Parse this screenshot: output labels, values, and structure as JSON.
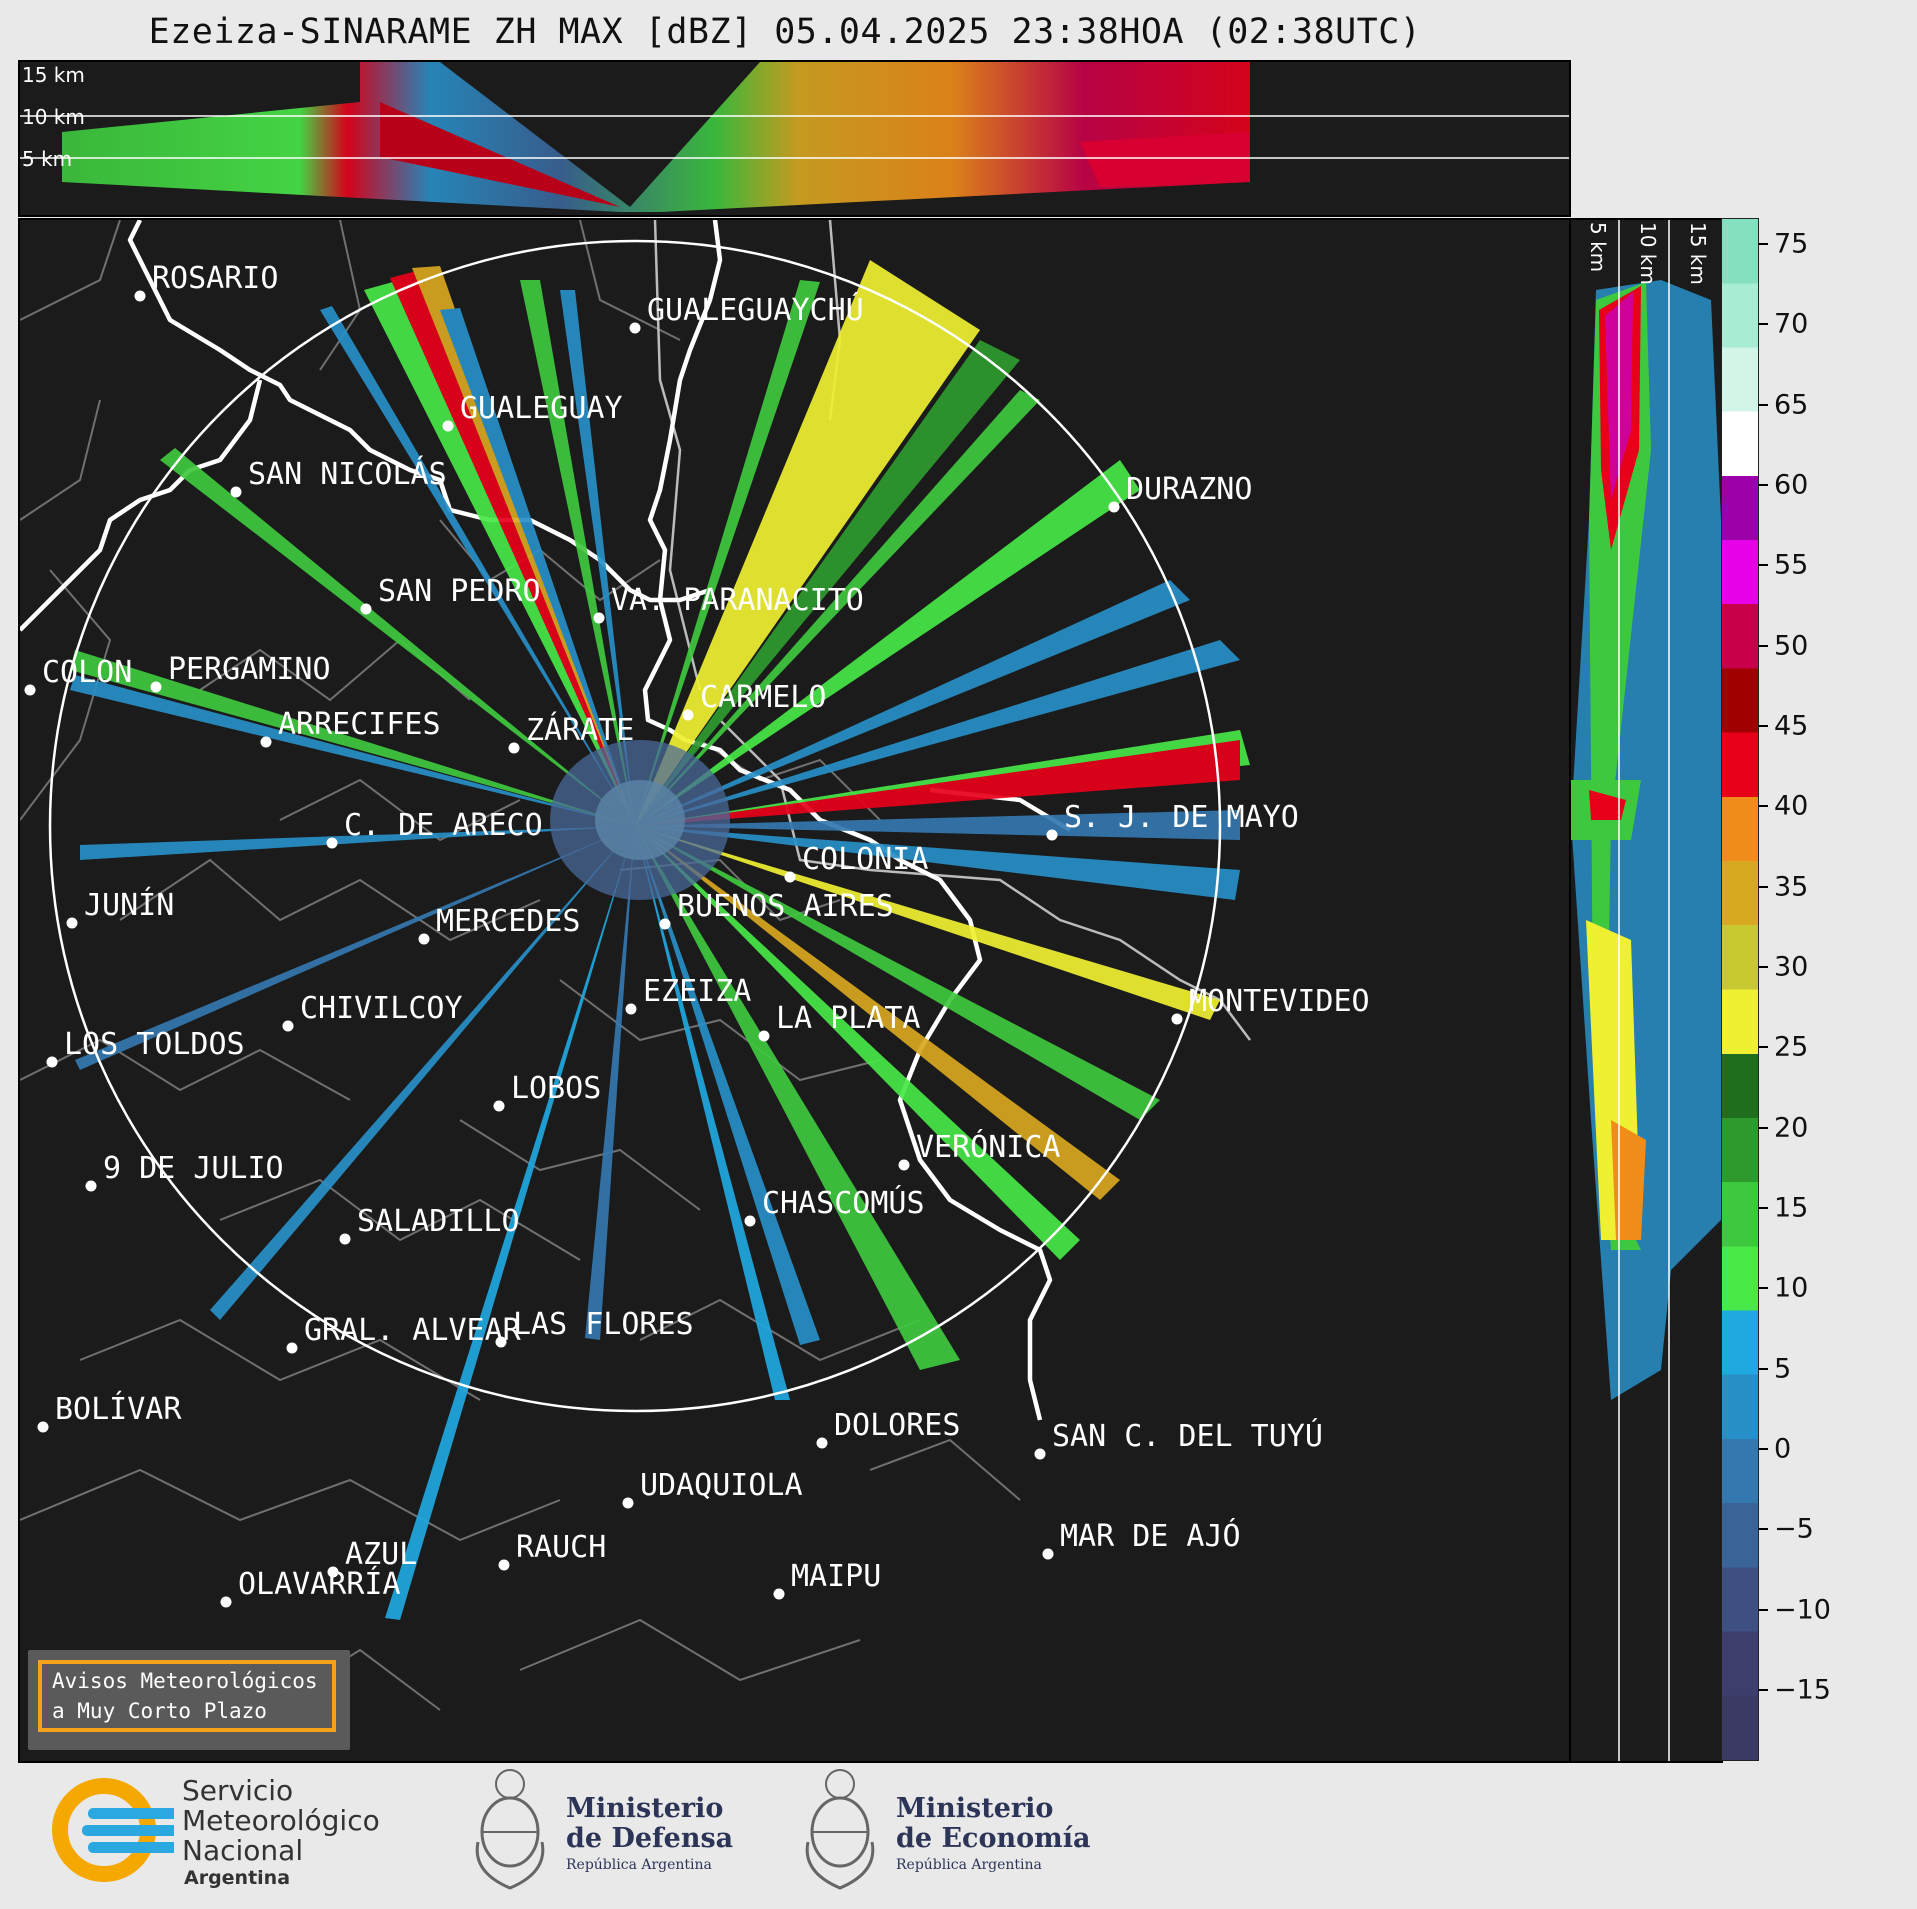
{
  "title": "Ezeiza-SINARAME ZH MAX [dBZ] 05.04.2025 23:38HOA (02:38UTC)",
  "height_labels": [
    "15 km",
    "10 km",
    "5 km"
  ],
  "colorbar": {
    "ticks": [
      "75",
      "70",
      "65",
      "60",
      "55",
      "50",
      "45",
      "40",
      "35",
      "30",
      "25",
      "20",
      "15",
      "10",
      "5",
      "0",
      "−5",
      "−10",
      "−15"
    ],
    "stops": [
      "#85e0c0",
      "#a8ecd4",
      "#d2f5e8",
      "#ffffff",
      "#9c00a8",
      "#e800e8",
      "#c8004a",
      "#a00000",
      "#e8001a",
      "#f08c1a",
      "#d8a820",
      "#c8c832",
      "#f0f032",
      "#1e6e1e",
      "#2e9a2e",
      "#3ec83e",
      "#48e848",
      "#20a8e0",
      "#2890c8",
      "#3478b0",
      "#3a6498",
      "#3e5080",
      "#3e3e6e",
      "#3a3a62"
    ]
  },
  "cities": [
    {
      "name": "ROSARIO"
    },
    {
      "name": "GUALEGUAYCHÚ"
    },
    {
      "name": "GUALEGUAY"
    },
    {
      "name": "SAN NICOLÁS"
    },
    {
      "name": "DURAZNO"
    },
    {
      "name": "SAN PEDRO"
    },
    {
      "name": "VA. PARANACITO"
    },
    {
      "name": "COLON"
    },
    {
      "name": "PERGAMINO"
    },
    {
      "name": "CARMELO"
    },
    {
      "name": "ARRECIFES"
    },
    {
      "name": "ZÁRATE"
    },
    {
      "name": "S. J. DE MAYO"
    },
    {
      "name": "C. DE ARECO"
    },
    {
      "name": "COLONIA"
    },
    {
      "name": "JUNÍN"
    },
    {
      "name": "BUENOS AIRES"
    },
    {
      "name": "MERCEDES"
    },
    {
      "name": "EZEIZA"
    },
    {
      "name": "MONTEVIDEO"
    },
    {
      "name": "CHIVILCOY"
    },
    {
      "name": "LA PLATA"
    },
    {
      "name": "LOS TOLDOS"
    },
    {
      "name": "LOBOS"
    },
    {
      "name": "VERÓNICA"
    },
    {
      "name": "9 DE JULIO"
    },
    {
      "name": "CHASCOMÚS"
    },
    {
      "name": "SALADILLO"
    },
    {
      "name": "GRAL. ALVEAR"
    },
    {
      "name": "LAS FLORES"
    },
    {
      "name": "BOLÍVAR"
    },
    {
      "name": "DOLORES"
    },
    {
      "name": "SAN C. DEL TUYÚ"
    },
    {
      "name": "UDAQUIOLA"
    },
    {
      "name": "MAR DE AJÓ"
    },
    {
      "name": "AZUL"
    },
    {
      "name": "RAUCH"
    },
    {
      "name": "OLAVARRÍA"
    },
    {
      "name": "MAIPU"
    }
  ],
  "avisos": {
    "line1": "Avisos Meteorológicos",
    "line2": "a Muy Corto Plazo"
  },
  "logos": {
    "smn": {
      "line1": "Servicio",
      "line2": "Meteorológico",
      "line3": "Nacional",
      "line4": "Argentina"
    },
    "defensa": {
      "line1": "Ministerio",
      "line2": "de Defensa",
      "line3": "República Argentina"
    },
    "economia": {
      "line1": "Ministerio",
      "line2": "de Economía",
      "line3": "República Argentina"
    }
  }
}
